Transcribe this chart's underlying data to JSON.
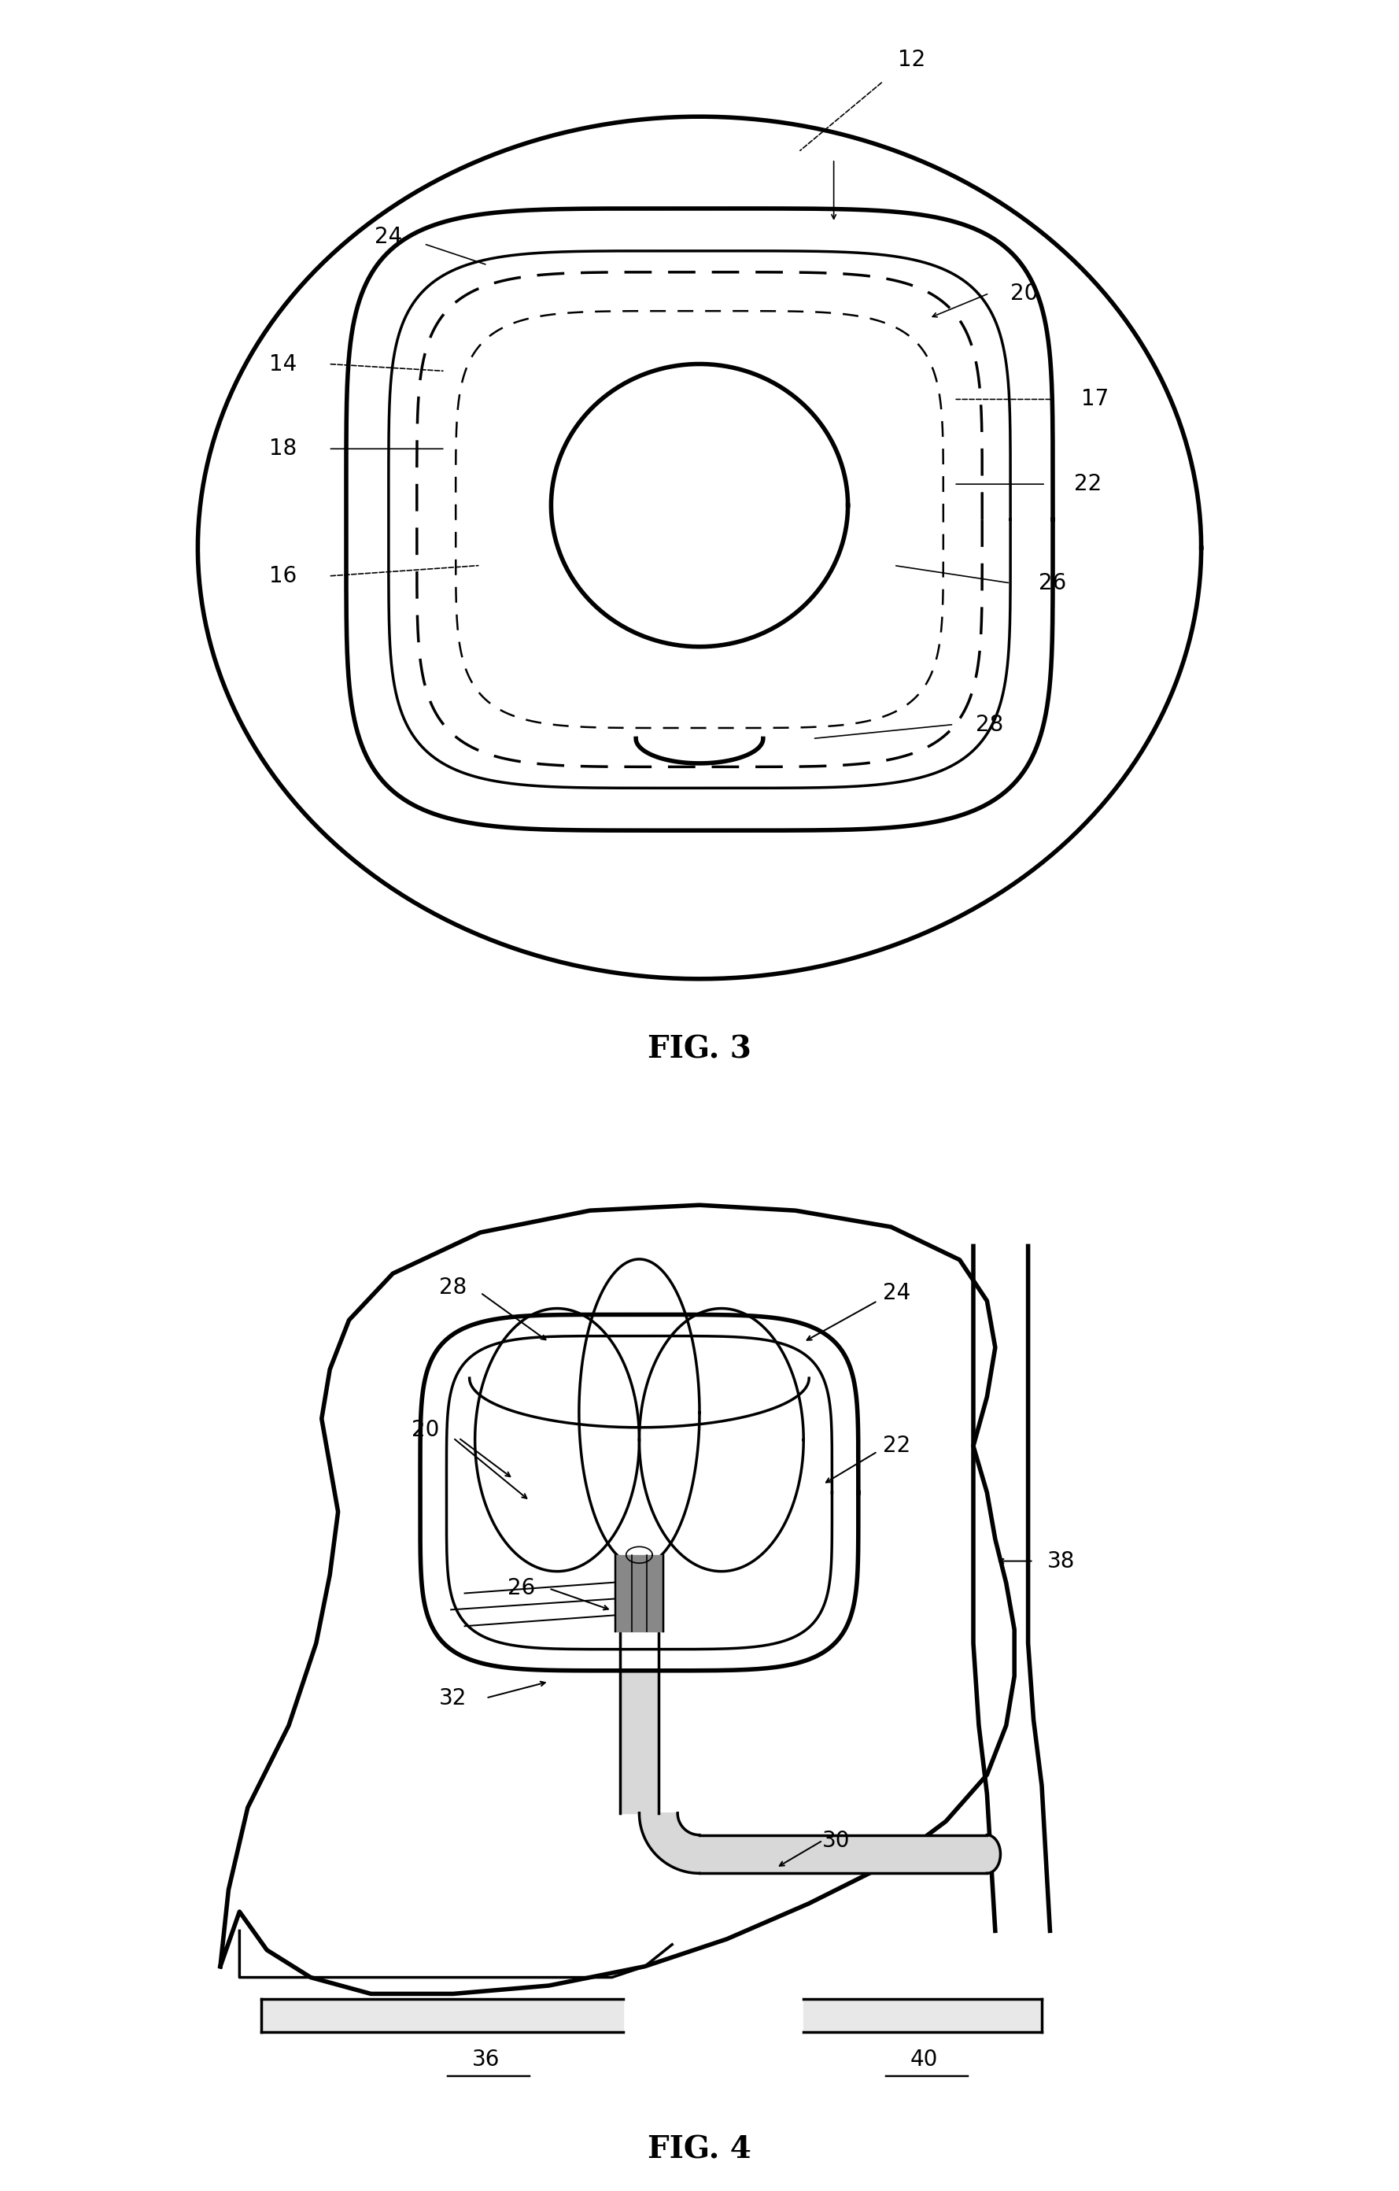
{
  "fig3_title": "FIG. 3",
  "fig4_title": "FIG. 4",
  "bg_color": "#ffffff",
  "line_color": "#000000",
  "lw_thick": 4.0,
  "lw_medium": 2.5,
  "lw_thin": 1.8,
  "lw_xtra_thin": 1.2,
  "label_fontsize": 20,
  "title_fontsize": 28
}
